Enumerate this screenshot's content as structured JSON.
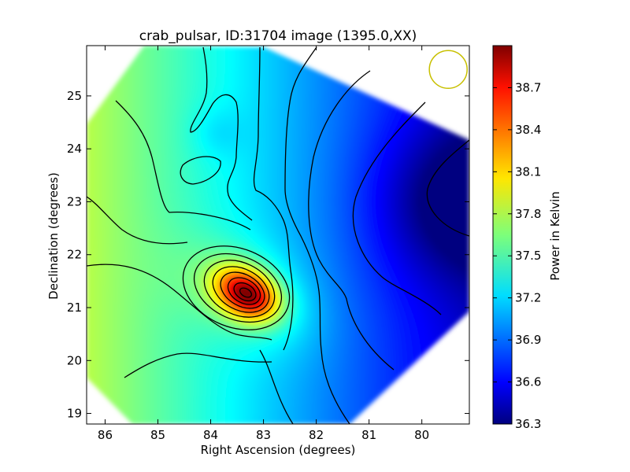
{
  "chart_data": {
    "type": "heatmap",
    "title": "crab_pulsar, ID:31704 image (1395.0,XX)",
    "xlabel": "Right Ascension (degrees)",
    "ylabel": "Declination (degrees)",
    "colorbar_label": "Power in Kelvin",
    "xlim": [
      86.35,
      79.1
    ],
    "ylim": [
      18.8,
      25.95
    ],
    "x_ticks": [
      86,
      85,
      84,
      83,
      82,
      81,
      80
    ],
    "y_ticks": [
      19,
      20,
      21,
      22,
      23,
      24,
      25
    ],
    "colorbar_range": [
      36.3,
      39.0
    ],
    "colorbar_ticks": [
      "36.3",
      "36.6",
      "36.9",
      "37.2",
      "37.5",
      "37.8",
      "38.1",
      "38.4",
      "38.7"
    ],
    "colormap": "jet",
    "grid": false,
    "peak": {
      "ra": 83.3,
      "dec": 21.25,
      "value": 38.95
    },
    "minimum": {
      "ra": 79.3,
      "dec": 23.0,
      "value": 36.3
    },
    "beam_circle": {
      "ra": 79.5,
      "dec": 25.5,
      "color": "#c8c000"
    },
    "contour_color": "#000000"
  }
}
